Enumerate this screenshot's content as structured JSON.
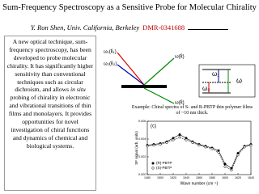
{
  "header": {
    "title": "Sum-Frequency Spectroscopy as a Sensitive Probe for Molecular Chirality",
    "author": "Y. Ron Shen, Univ. California, Berkeley",
    "grant": "DMR-0341688"
  },
  "body": {
    "before": "A new optical technique, sum-frequency spectroscopy, has been developed to probe molecular chirality.  It has significantly higher sensitivity than conventional techniques such as circular dichroism, and allows",
    "emphasis": "in situ",
    "after": "probing of chirality in electronic and vibrational transitions of thin films and monolayers.  It provides opportunities for novel investigation of chiral functions and dynamics of chemical and biological systems."
  },
  "diagram": {
    "beam_1": "ω₁(k̂₁)",
    "beam_2": "ω₂(k̂₂)",
    "out_1": "ω(k̂)",
    "out_2": "ω(k̂)",
    "level_1": "ω₁",
    "level_2": "ω₂",
    "level_sum": "ω"
  },
  "example": "Example:  Chiral spectra of S- and R-PBTP thin polymer films of ~10 nm thick.",
  "chart_data": {
    "type": "line",
    "panel": "(c)",
    "x_label": "Wave number (cm⁻¹)",
    "y_label": "SF signal (arb. units)",
    "x": [
      1480,
      1490,
      1500,
      1510,
      1520,
      1530,
      1540,
      1550,
      1560,
      1570,
      1580,
      1590,
      1600,
      1610,
      1620,
      1630,
      1640
    ],
    "series": [
      {
        "name": "(R)-PBTP",
        "color": "#000000",
        "marker": "filled",
        "values": [
          0.0033,
          0.0034,
          0.0035,
          0.0037,
          0.0041,
          0.0045,
          0.0041,
          0.0037,
          0.0034,
          0.0032,
          0.003,
          0.0027,
          0.0012,
          0.0007,
          0.0024,
          0.0032,
          0.0034
        ]
      },
      {
        "name": "(S)-PBTP",
        "color": "#000000",
        "marker": "open",
        "values": [
          0.0032,
          0.0033,
          0.0034,
          0.0036,
          0.0039,
          0.0042,
          0.0039,
          0.0036,
          0.0033,
          0.0031,
          0.0029,
          0.0025,
          0.0009,
          0.0005,
          0.0022,
          0.0031,
          0.0033
        ]
      }
    ],
    "xlim": [
      1480,
      1640
    ],
    "ylim": [
      0,
      0.006
    ],
    "xticks": [
      1480,
      1500,
      1520,
      1540,
      1560,
      1580,
      1600,
      1620,
      1640
    ],
    "yticks": [
      {
        "value": 0,
        "label": "0.000"
      },
      {
        "value": 0.002,
        "label": "0.002"
      },
      {
        "value": 0.004,
        "label": "0.004"
      },
      {
        "value": 0.006,
        "label": "0.006"
      }
    ]
  }
}
